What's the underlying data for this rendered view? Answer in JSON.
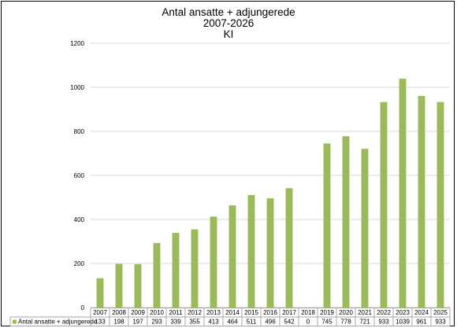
{
  "chart_data": {
    "type": "bar",
    "title": [
      "Antal ansatte + adjungerede",
      "2007-2026",
      "KI"
    ],
    "categories": [
      "2007",
      "2008",
      "2009",
      "2010",
      "2011",
      "2012",
      "2013",
      "2014",
      "2015",
      "2016",
      "2017",
      "2018",
      "2019",
      "2020",
      "2021",
      "2022",
      "2023",
      "2024",
      "2025"
    ],
    "series": [
      {
        "name": "Antal ansatte + adjungerede",
        "values": [
          133,
          198,
          197,
          293,
          339,
          355,
          413,
          464,
          511,
          496,
          542,
          0,
          745,
          778,
          721,
          933,
          1039,
          961,
          933
        ],
        "color": "#9bbb59"
      }
    ],
    "ylim": [
      0,
      1200
    ],
    "yticks": [
      0,
      200,
      400,
      600,
      800,
      1000,
      1200
    ],
    "grid": true,
    "legend": "data-table-left",
    "data_table": true
  }
}
